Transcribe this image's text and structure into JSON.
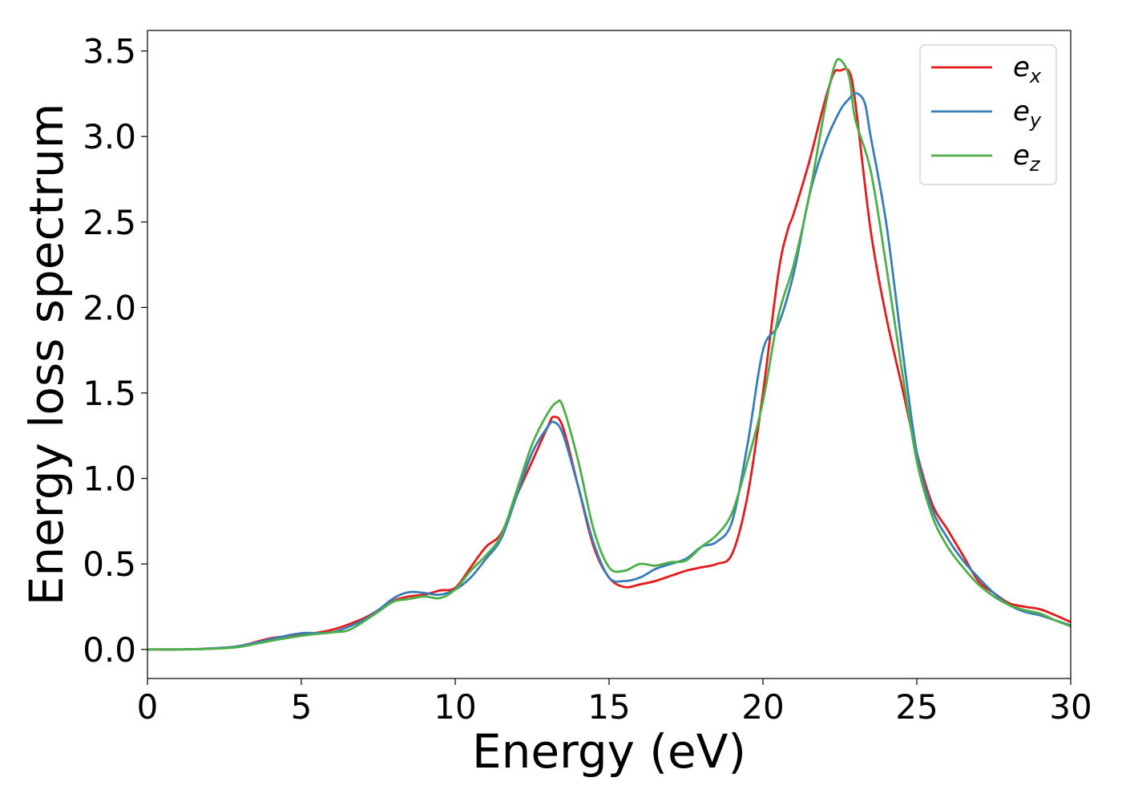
{
  "chart_data": {
    "type": "line",
    "title": "",
    "xlabel": "Energy (eV)",
    "ylabel": "Energy loss spectrum",
    "xlim": [
      0,
      30
    ],
    "ylim": [
      -0.17,
      3.62
    ],
    "xticks": [
      0,
      5,
      10,
      15,
      20,
      25,
      30
    ],
    "xtick_labels": [
      "0",
      "5",
      "10",
      "15",
      "20",
      "25",
      "30"
    ],
    "yticks": [
      0.0,
      0.5,
      1.0,
      1.5,
      2.0,
      2.5,
      3.0,
      3.5
    ],
    "ytick_labels": [
      "0.0",
      "0.5",
      "1.0",
      "1.5",
      "2.0",
      "2.5",
      "3.0",
      "3.5"
    ],
    "grid": false,
    "legend_position": "top-right",
    "series": [
      {
        "name": "e_x",
        "base": "e",
        "sub": "x",
        "color": "#e41a1c",
        "points": [
          [
            0,
            0
          ],
          [
            1,
            0
          ],
          [
            2,
            0.005
          ],
          [
            3,
            0.02
          ],
          [
            4,
            0.065
          ],
          [
            5,
            0.085
          ],
          [
            6,
            0.115
          ],
          [
            7,
            0.18
          ],
          [
            7.5,
            0.23
          ],
          [
            8,
            0.285
          ],
          [
            8.5,
            0.31
          ],
          [
            9,
            0.32
          ],
          [
            9.5,
            0.345
          ],
          [
            10,
            0.36
          ],
          [
            10.5,
            0.48
          ],
          [
            11,
            0.6
          ],
          [
            11.5,
            0.68
          ],
          [
            12,
            0.9
          ],
          [
            12.5,
            1.1
          ],
          [
            13,
            1.3
          ],
          [
            13.2,
            1.36
          ],
          [
            13.5,
            1.3
          ],
          [
            14,
            0.95
          ],
          [
            14.5,
            0.6
          ],
          [
            15,
            0.42
          ],
          [
            15.5,
            0.365
          ],
          [
            16,
            0.38
          ],
          [
            16.5,
            0.4
          ],
          [
            17,
            0.43
          ],
          [
            17.5,
            0.46
          ],
          [
            18,
            0.48
          ],
          [
            18.5,
            0.5
          ],
          [
            19,
            0.56
          ],
          [
            19.5,
            0.9
          ],
          [
            20,
            1.5
          ],
          [
            20.5,
            2.2
          ],
          [
            20.8,
            2.45
          ],
          [
            21,
            2.55
          ],
          [
            21.5,
            2.85
          ],
          [
            22,
            3.2
          ],
          [
            22.3,
            3.37
          ],
          [
            22.5,
            3.385
          ],
          [
            22.8,
            3.38
          ],
          [
            23,
            3.2
          ],
          [
            23.5,
            2.45
          ],
          [
            24,
            1.95
          ],
          [
            24.5,
            1.55
          ],
          [
            25,
            1.15
          ],
          [
            25.5,
            0.85
          ],
          [
            26,
            0.7
          ],
          [
            26.5,
            0.55
          ],
          [
            27,
            0.4
          ],
          [
            27.5,
            0.33
          ],
          [
            28,
            0.27
          ],
          [
            28.5,
            0.25
          ],
          [
            29,
            0.235
          ],
          [
            29.5,
            0.2
          ],
          [
            30,
            0.16
          ]
        ]
      },
      {
        "name": "e_y",
        "base": "e",
        "sub": "y",
        "color": "#377eb8",
        "points": [
          [
            0,
            0
          ],
          [
            1,
            0
          ],
          [
            2,
            0.005
          ],
          [
            3,
            0.02
          ],
          [
            4,
            0.06
          ],
          [
            5,
            0.095
          ],
          [
            6,
            0.1
          ],
          [
            7,
            0.17
          ],
          [
            7.5,
            0.23
          ],
          [
            8,
            0.3
          ],
          [
            8.5,
            0.335
          ],
          [
            9,
            0.33
          ],
          [
            9.5,
            0.32
          ],
          [
            10,
            0.35
          ],
          [
            10.5,
            0.42
          ],
          [
            11,
            0.53
          ],
          [
            11.5,
            0.65
          ],
          [
            12,
            0.9
          ],
          [
            12.5,
            1.15
          ],
          [
            13,
            1.3
          ],
          [
            13.2,
            1.33
          ],
          [
            13.5,
            1.26
          ],
          [
            14,
            0.95
          ],
          [
            14.5,
            0.62
          ],
          [
            15,
            0.42
          ],
          [
            15.5,
            0.4
          ],
          [
            16,
            0.42
          ],
          [
            16.5,
            0.47
          ],
          [
            17,
            0.5
          ],
          [
            17.5,
            0.53
          ],
          [
            18,
            0.6
          ],
          [
            18.5,
            0.63
          ],
          [
            19,
            0.75
          ],
          [
            19.5,
            1.2
          ],
          [
            20,
            1.75
          ],
          [
            20.5,
            1.9
          ],
          [
            21,
            2.2
          ],
          [
            21.5,
            2.65
          ],
          [
            22,
            2.95
          ],
          [
            22.5,
            3.15
          ],
          [
            22.8,
            3.22
          ],
          [
            23,
            3.255
          ],
          [
            23.3,
            3.2
          ],
          [
            23.5,
            3.0
          ],
          [
            24,
            2.5
          ],
          [
            24.5,
            1.8
          ],
          [
            25,
            1.15
          ],
          [
            25.5,
            0.82
          ],
          [
            26,
            0.65
          ],
          [
            26.5,
            0.52
          ],
          [
            27,
            0.42
          ],
          [
            27.5,
            0.33
          ],
          [
            28,
            0.26
          ],
          [
            28.5,
            0.22
          ],
          [
            29,
            0.2
          ],
          [
            29.5,
            0.17
          ],
          [
            30,
            0.14
          ]
        ]
      },
      {
        "name": "e_z",
        "base": "e",
        "sub": "z",
        "color": "#4daf4a",
        "points": [
          [
            0,
            0
          ],
          [
            1,
            0
          ],
          [
            2,
            0.003
          ],
          [
            3,
            0.015
          ],
          [
            4,
            0.05
          ],
          [
            5,
            0.08
          ],
          [
            6,
            0.1
          ],
          [
            6.5,
            0.11
          ],
          [
            7,
            0.16
          ],
          [
            7.5,
            0.22
          ],
          [
            8,
            0.28
          ],
          [
            8.5,
            0.295
          ],
          [
            9,
            0.31
          ],
          [
            9.5,
            0.3
          ],
          [
            10,
            0.35
          ],
          [
            10.5,
            0.46
          ],
          [
            11,
            0.55
          ],
          [
            11.5,
            0.67
          ],
          [
            12,
            0.93
          ],
          [
            12.5,
            1.2
          ],
          [
            13,
            1.38
          ],
          [
            13.3,
            1.445
          ],
          [
            13.5,
            1.42
          ],
          [
            14,
            1.1
          ],
          [
            14.5,
            0.7
          ],
          [
            15,
            0.48
          ],
          [
            15.5,
            0.46
          ],
          [
            16,
            0.5
          ],
          [
            16.5,
            0.49
          ],
          [
            17,
            0.51
          ],
          [
            17.5,
            0.52
          ],
          [
            18,
            0.6
          ],
          [
            18.5,
            0.67
          ],
          [
            19,
            0.8
          ],
          [
            19.5,
            1.1
          ],
          [
            20,
            1.45
          ],
          [
            20.5,
            1.95
          ],
          [
            21,
            2.25
          ],
          [
            21.5,
            2.65
          ],
          [
            22,
            3.15
          ],
          [
            22.3,
            3.4
          ],
          [
            22.5,
            3.45
          ],
          [
            22.8,
            3.35
          ],
          [
            23,
            3.1
          ],
          [
            23.5,
            2.8
          ],
          [
            24,
            2.25
          ],
          [
            24.5,
            1.65
          ],
          [
            25,
            1.1
          ],
          [
            25.5,
            0.78
          ],
          [
            26,
            0.6
          ],
          [
            26.5,
            0.48
          ],
          [
            27,
            0.38
          ],
          [
            27.5,
            0.31
          ],
          [
            28,
            0.26
          ],
          [
            28.5,
            0.23
          ],
          [
            29,
            0.21
          ],
          [
            29.5,
            0.17
          ],
          [
            30,
            0.135
          ]
        ]
      }
    ]
  }
}
